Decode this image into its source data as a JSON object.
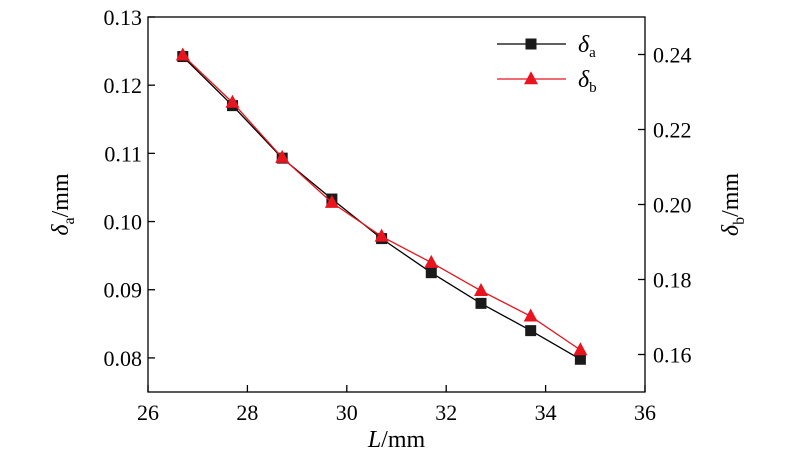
{
  "chart_data": {
    "type": "line",
    "x": [
      26.7,
      27.7,
      28.7,
      29.7,
      30.7,
      31.7,
      32.7,
      33.7,
      34.7
    ],
    "xlim": [
      26,
      36
    ],
    "xticks": [
      26,
      28,
      30,
      32,
      34,
      36
    ],
    "xlabel": {
      "italic": "L",
      "rest": "/mm"
    },
    "y_left": {
      "lim": [
        0.075,
        0.13
      ],
      "ticks": [
        "0.08",
        "0.09",
        "0.10",
        "0.11",
        "0.12",
        "0.13"
      ],
      "label": {
        "symbol": "δ",
        "sub": "a",
        "unit": "/mm"
      }
    },
    "y_right": {
      "lim": [
        0.15,
        0.25
      ],
      "ticks": [
        "0.16",
        "0.18",
        "0.20",
        "0.22",
        "0.24"
      ],
      "label": {
        "symbol": "δ",
        "sub": "b",
        "unit": "/mm"
      }
    },
    "series": [
      {
        "name": "δa",
        "legend_symbol": "δ",
        "legend_sub": "a",
        "axis": "left",
        "marker": "square",
        "color": "#000000",
        "marker_color": "#1a1a1a",
        "values": [
          0.1242,
          0.117,
          0.1093,
          0.1033,
          0.0975,
          0.0925,
          0.088,
          0.084,
          0.0798
        ]
      },
      {
        "name": "δb",
        "legend_symbol": "δ",
        "legend_sub": "b",
        "axis": "right",
        "marker": "triangle",
        "color": "#e8141e",
        "marker_color": "#e8141e",
        "values": [
          0.2398,
          0.2272,
          0.2125,
          0.2005,
          0.1915,
          0.1845,
          0.177,
          0.1702,
          0.1612
        ]
      }
    ],
    "legend_position": "top-right",
    "grid": false
  }
}
